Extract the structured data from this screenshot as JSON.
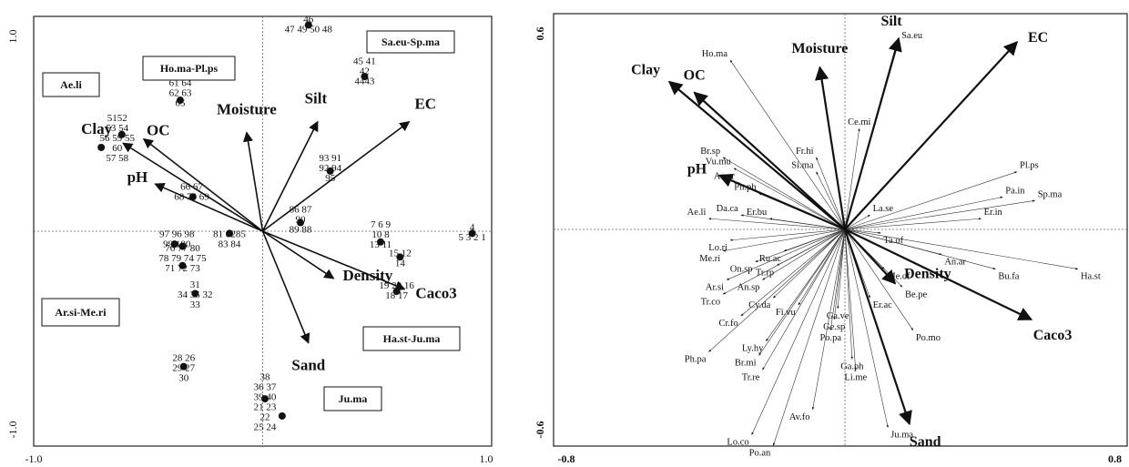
{
  "chart_data": [
    {
      "type": "scatter",
      "title": "",
      "xlim": [
        -1.0,
        1.0
      ],
      "ylim": [
        -1.0,
        1.0
      ],
      "x_ticks": [
        "-1.0",
        "1.0"
      ],
      "y_ticks": [
        "1.0",
        "-1.0"
      ],
      "grid": false,
      "env_arrows": [
        {
          "label": "Clay",
          "x": -0.61,
          "y": 0.41
        },
        {
          "label": "OC",
          "x": -0.52,
          "y": 0.43
        },
        {
          "label": "pH",
          "x": -0.47,
          "y": 0.22
        },
        {
          "label": "Moisture",
          "x": -0.07,
          "y": 0.46
        },
        {
          "label": "Silt",
          "x": 0.24,
          "y": 0.51
        },
        {
          "label": "EC",
          "x": 0.64,
          "y": 0.51
        },
        {
          "label": "Caco3",
          "x": 0.62,
          "y": -0.27
        },
        {
          "label": "Density",
          "x": 0.31,
          "y": -0.22
        },
        {
          "label": "Sand",
          "x": 0.2,
          "y": -0.52
        }
      ],
      "site_groups": [
        {
          "label": "46\n47 49 50 48",
          "x": 0.4,
          "y": 0.95
        },
        {
          "label": "45 41\n42\n4443",
          "x": 0.89,
          "y": 0.73
        },
        {
          "label": "61 64\n62 63\n65",
          "x": -0.72,
          "y": 0.63
        },
        {
          "label": "5152\n53 54\n56 59 55\n60\n57 58",
          "x": -1.27,
          "y": 0.42
        },
        {
          "label": "93 91\n92 94\n95",
          "x": 0.59,
          "y": 0.28
        },
        {
          "label": "66 67\n68 70 69",
          "x": -0.62,
          "y": 0.17
        },
        {
          "label": "86 87\n90\n89 88",
          "x": 0.33,
          "y": 0.04
        },
        {
          "label": "97 96 98\n99 100",
          "x": -0.75,
          "y": -0.05
        },
        {
          "label": "81 8285\n83 84",
          "x": -0.29,
          "y": -0.05
        },
        {
          "label": "76 77 80\n78 79 74 75\n71 72 73",
          "x": -0.7,
          "y": -0.14
        },
        {
          "label": "7 6 9\n10 8\n13 11",
          "x": 1.03,
          "y": -0.03
        },
        {
          "label": "4\n5 3 2 1",
          "x": 1.83,
          "y": -0.02
        },
        {
          "label": "15 12\n14",
          "x": 1.2,
          "y": -0.14
        },
        {
          "label": "19 20 16\n18 17",
          "x": 1.17,
          "y": -0.29
        },
        {
          "label": "31\n34 35 32\n33",
          "x": -0.59,
          "y": -0.31
        },
        {
          "label": "28 26\n29 27\n30",
          "x": -0.69,
          "y": -0.65
        },
        {
          "label": "38\n36 37\n39 40\n21 23\n22\n25 24",
          "x": 0.02,
          "y": -0.81
        }
      ],
      "boxed_labels": [
        "Sa.eu-Sp.ma",
        "Ho.ma-Pl.ps",
        "Ae.li",
        "Ar.si-Me.ri",
        "Ha.st-Ju.ma",
        "Ju.ma"
      ]
    },
    {
      "type": "scatter",
      "title": "",
      "xlim": [
        -0.8,
        0.8
      ],
      "ylim": [
        -0.6,
        0.6
      ],
      "x_ticks": [
        "-0.8",
        "0.8"
      ],
      "y_ticks": [
        "0.6",
        "-0.6"
      ],
      "grid": false,
      "env_arrows": [
        {
          "label": "Clay",
          "x": -0.49,
          "y": 0.41
        },
        {
          "label": "OC",
          "x": -0.42,
          "y": 0.38
        },
        {
          "label": "pH",
          "x": -0.35,
          "y": 0.15
        },
        {
          "label": "Moisture",
          "x": -0.07,
          "y": 0.45
        },
        {
          "label": "Silt",
          "x": 0.15,
          "y": 0.53
        },
        {
          "label": "EC",
          "x": 0.48,
          "y": 0.52
        },
        {
          "label": "Caco3",
          "x": 0.52,
          "y": -0.25
        },
        {
          "label": "Density",
          "x": 0.14,
          "y": -0.15
        },
        {
          "label": "Sand",
          "x": 0.18,
          "y": -0.54
        }
      ],
      "species": [
        {
          "label": "Ho.ma",
          "x": -0.32,
          "y": 0.47
        },
        {
          "label": "Sa.eu",
          "x": 0.15,
          "y": 0.52
        },
        {
          "label": "Ce.mi",
          "x": 0.04,
          "y": 0.28
        },
        {
          "label": "Fr.hi",
          "x": -0.08,
          "y": 0.2
        },
        {
          "label": "Si.ma",
          "x": -0.08,
          "y": 0.16
        },
        {
          "label": "Br.sp",
          "x": -0.34,
          "y": 0.2
        },
        {
          "label": "Vu.mu",
          "x": -0.31,
          "y": 0.17
        },
        {
          "label": "Ae.cr",
          "x": -0.3,
          "y": 0.13
        },
        {
          "label": "Ph.ph",
          "x": -0.24,
          "y": 0.1
        },
        {
          "label": "Pl.ps",
          "x": 0.48,
          "y": 0.16
        },
        {
          "label": "Pa.in",
          "x": 0.44,
          "y": 0.09
        },
        {
          "label": "Sp.ma",
          "x": 0.53,
          "y": 0.08
        },
        {
          "label": "La.se",
          "x": 0.07,
          "y": 0.04
        },
        {
          "label": "Er.in",
          "x": 0.38,
          "y": 0.03
        },
        {
          "label": "Da.ca",
          "x": -0.29,
          "y": 0.04
        },
        {
          "label": "Er.bu",
          "x": -0.21,
          "y": 0.03
        },
        {
          "label": "Ae.li",
          "x": -0.38,
          "y": 0.03
        },
        {
          "label": "Ta.of",
          "x": 0.1,
          "y": -0.01
        },
        {
          "label": "Lo.ri",
          "x": -0.32,
          "y": -0.03
        },
        {
          "label": "Me.ri",
          "x": -0.34,
          "y": -0.06
        },
        {
          "label": "Ru.ac",
          "x": -0.17,
          "y": -0.06
        },
        {
          "label": "An.ar",
          "x": 0.27,
          "y": -0.07
        },
        {
          "label": "Tr.rp",
          "x": -0.19,
          "y": -0.1
        },
        {
          "label": "On.sp",
          "x": -0.25,
          "y": -0.09
        },
        {
          "label": "Bu.fa",
          "x": 0.42,
          "y": -0.11
        },
        {
          "label": "Ha.st",
          "x": 0.65,
          "y": -0.11
        },
        {
          "label": "Ar.si",
          "x": -0.33,
          "y": -0.14
        },
        {
          "label": "An.sp",
          "x": -0.23,
          "y": -0.14
        },
        {
          "label": "Me.of",
          "x": 0.11,
          "y": -0.11
        },
        {
          "label": "Be.pe",
          "x": 0.16,
          "y": -0.16
        },
        {
          "label": "Tr.co",
          "x": -0.34,
          "y": -0.18
        },
        {
          "label": "Cy.da",
          "x": -0.2,
          "y": -0.19
        },
        {
          "label": "Er.ac",
          "x": 0.07,
          "y": -0.19
        },
        {
          "label": "Fi.vu",
          "x": -0.13,
          "y": -0.21
        },
        {
          "label": "Ga.ve",
          "x": -0.02,
          "y": -0.22
        },
        {
          "label": "Cr.fo",
          "x": -0.29,
          "y": -0.24
        },
        {
          "label": "Ge.sp",
          "x": -0.03,
          "y": -0.25
        },
        {
          "label": "Po.pa",
          "x": -0.04,
          "y": -0.28
        },
        {
          "label": "Po.mo",
          "x": 0.19,
          "y": -0.28
        },
        {
          "label": "Ly.hy",
          "x": -0.22,
          "y": -0.31
        },
        {
          "label": "Ph.pa",
          "x": -0.38,
          "y": -0.34
        },
        {
          "label": "Br.mi",
          "x": -0.24,
          "y": -0.35
        },
        {
          "label": "Ga.ph",
          "x": 0.02,
          "y": -0.36
        },
        {
          "label": "Li.me",
          "x": 0.03,
          "y": -0.39
        },
        {
          "label": "Tr.re",
          "x": -0.23,
          "y": -0.39
        },
        {
          "label": "Av.fo",
          "x": -0.09,
          "y": -0.5
        },
        {
          "label": "Ju.ma",
          "x": 0.12,
          "y": -0.55
        },
        {
          "label": "Lo.co",
          "x": -0.26,
          "y": -0.57
        },
        {
          "label": "Po.an",
          "x": -0.2,
          "y": -0.6
        }
      ]
    }
  ]
}
